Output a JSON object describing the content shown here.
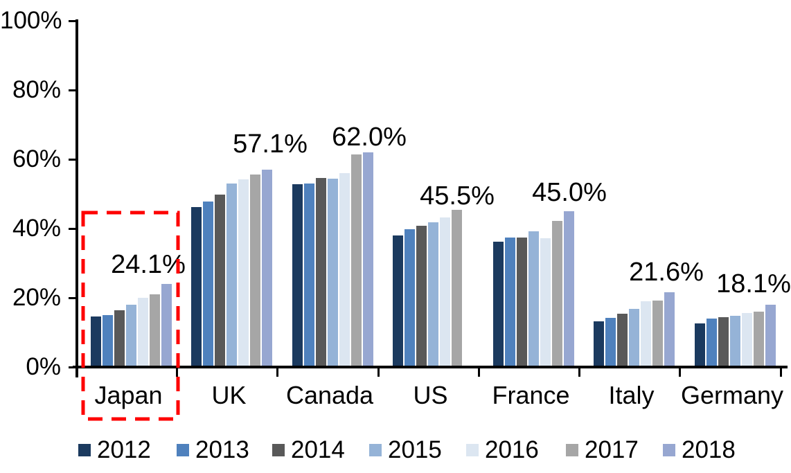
{
  "chart_data": {
    "type": "bar",
    "title": "",
    "xlabel": "",
    "ylabel": "",
    "categories": [
      "Japan",
      "UK",
      "Canada",
      "US",
      "France",
      "Italy",
      "Germany"
    ],
    "series": [
      {
        "name": "2012",
        "color": "#1B3A5F",
        "values": [
          14.7,
          46.2,
          52.8,
          38.0,
          36.3,
          13.2,
          12.6
        ]
      },
      {
        "name": "2013",
        "color": "#4F81BD",
        "values": [
          15.0,
          47.8,
          53.1,
          39.8,
          37.5,
          14.2,
          14.0
        ]
      },
      {
        "name": "2014",
        "color": "#595959",
        "values": [
          16.5,
          49.8,
          54.7,
          40.8,
          37.5,
          15.4,
          14.4
        ]
      },
      {
        "name": "2015",
        "color": "#95B3D7",
        "values": [
          18.0,
          53.0,
          54.5,
          41.9,
          39.2,
          16.8,
          14.8
        ]
      },
      {
        "name": "2016",
        "color": "#DCE6F1",
        "values": [
          20.0,
          54.3,
          56.0,
          43.3,
          37.2,
          19.0,
          15.6
        ]
      },
      {
        "name": "2017",
        "color": "#A6A6A6",
        "values": [
          21.0,
          55.6,
          61.5,
          45.5,
          42.2,
          19.2,
          16.0
        ]
      },
      {
        "name": "2018",
        "color": "#97A7D1",
        "values": [
          24.1,
          57.1,
          62.0,
          null,
          45.0,
          21.6,
          18.1
        ]
      }
    ],
    "data_labels": [
      "24.1%",
      "57.1%",
      "62.0%",
      "45.5%",
      "45.0%",
      "21.6%",
      "18.1%"
    ],
    "y_axis": {
      "tick_labels": [
        "100%",
        "80%",
        "60%",
        "40%",
        "20%",
        "0%"
      ],
      "min": 0,
      "max": 100,
      "step": 20
    },
    "grid": false,
    "legend_position": "bottom",
    "highlight": {
      "category": "Japan",
      "style": "dashed-box",
      "color": "#FE0000"
    }
  }
}
